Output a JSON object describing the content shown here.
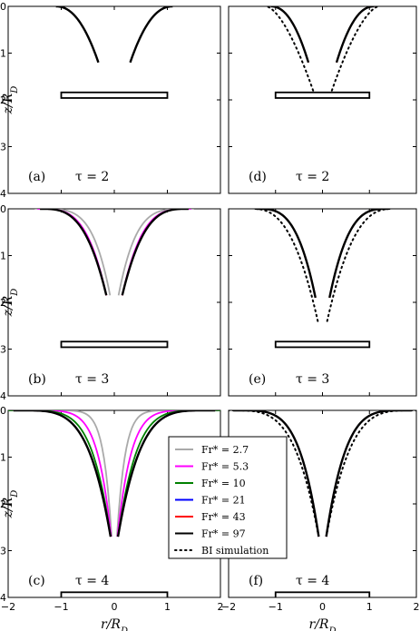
{
  "chart_data": {
    "type": "line",
    "xlabel": "r/R_D",
    "ylabel": "z/R_D",
    "xlim": [
      -2,
      2
    ],
    "ylim": [
      -4,
      0
    ],
    "x_ticks": [
      "−2",
      "−1",
      "0",
      "1",
      "2"
    ],
    "y_ticks": [
      "0",
      "−1",
      "−2",
      "−3",
      "−4"
    ],
    "legend": {
      "location": "center-bottom",
      "entries": [
        {
          "label": "Fr* = 2.7",
          "color": "#aaaaaa",
          "style": "solid"
        },
        {
          "label": "Fr* = 5.3",
          "color": "#ff00ff",
          "style": "solid"
        },
        {
          "label": "Fr* = 10",
          "color": "#008000",
          "style": "solid"
        },
        {
          "label": "Fr* = 21",
          "color": "#0000ff",
          "style": "solid"
        },
        {
          "label": "Fr* = 43",
          "color": "#ff0000",
          "style": "solid"
        },
        {
          "label": "Fr* = 97",
          "color": "#000000",
          "style": "solid"
        },
        {
          "label": "BI simulation",
          "color": "#000000",
          "style": "dotted"
        }
      ]
    },
    "panels": [
      {
        "id": "a",
        "label": "(a)",
        "tau": "τ = 2",
        "tau_value": 2,
        "tip_depth": -1.2,
        "tip_r": 0.3,
        "disk_z": -1.9,
        "variants": [
          2.7,
          97
        ],
        "bi": false
      },
      {
        "id": "d",
        "label": "(d)",
        "tau": "τ = 2",
        "tau_value": 2,
        "tip_depth": -1.2,
        "tip_r": 0.3,
        "disk_z": -1.9,
        "variants": [
          43,
          97
        ],
        "bi": true,
        "bi_depth": -1.8,
        "bi_r": 0.2
      },
      {
        "id": "b",
        "label": "(b)",
        "tau": "τ = 3",
        "tau_value": 3,
        "tip_depth": -1.85,
        "tip_r": 0.15,
        "disk_z": -2.9,
        "variants": [
          2.7,
          5.3,
          43,
          97
        ],
        "bi": false
      },
      {
        "id": "e",
        "label": "(e)",
        "tau": "τ = 3",
        "tau_value": 3,
        "tip_depth": -1.9,
        "tip_r": 0.15,
        "disk_z": -2.9,
        "variants": [
          10,
          43,
          97
        ],
        "bi": true,
        "bi_depth": -2.4,
        "bi_r": 0.1
      },
      {
        "id": "c",
        "label": "(c)",
        "tau": "τ = 4",
        "tau_value": 4,
        "tip_depth": -2.7,
        "tip_r": 0.07,
        "disk_z": -3.95,
        "variants": [
          2.7,
          5.3,
          10,
          21,
          43,
          97
        ],
        "bi": false
      },
      {
        "id": "f",
        "label": "(f)",
        "tau": "τ = 4",
        "tau_value": 4,
        "tip_depth": -2.7,
        "tip_r": 0.08,
        "disk_z": -3.95,
        "variants": [
          21,
          43,
          97
        ],
        "bi": true,
        "bi_depth": -2.6,
        "bi_r": 0.1
      }
    ],
    "disk": {
      "r_range": [
        -1,
        1
      ],
      "thickness": 0.12
    }
  }
}
